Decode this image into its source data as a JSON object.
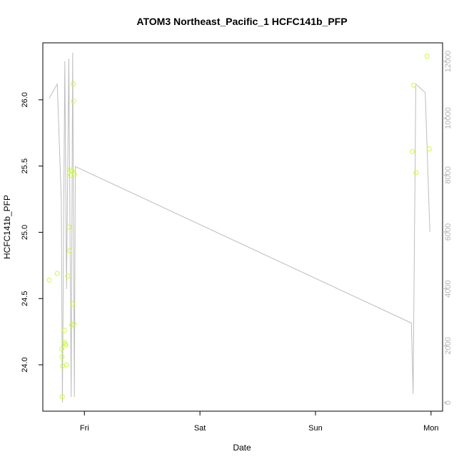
{
  "chart_data": {
    "type": "scatter",
    "title": "ATOM3 Northeast_Pacific_1 HCFC141b_PFP",
    "xlabel": "Date",
    "ylabel": "HCFC141b_PFP",
    "x_ticks": [
      {
        "label": "Fri",
        "day": 1.0
      },
      {
        "label": "Sat",
        "day": 2.0
      },
      {
        "label": "Sun",
        "day": 3.0
      },
      {
        "label": "Mon",
        "day": 4.0
      }
    ],
    "xlim": [
      0.64,
      4.1
    ],
    "ylim": [
      23.65,
      26.43
    ],
    "y_ticks": [
      24.0,
      24.5,
      25.0,
      25.5,
      26.0
    ],
    "y2lim": [
      -300,
      12650
    ],
    "y2_ticks": [
      0,
      2000,
      4000,
      6000,
      8000,
      10000,
      12000
    ],
    "point_color": "#ccff33",
    "line_color": "#bdbdbd",
    "points": [
      {
        "x": 0.695,
        "y": 24.64
      },
      {
        "x": 0.765,
        "y": 24.69
      },
      {
        "x": 0.803,
        "y": 24.12
      },
      {
        "x": 0.806,
        "y": 24.06
      },
      {
        "x": 0.808,
        "y": 23.76
      },
      {
        "x": 0.811,
        "y": 23.99
      },
      {
        "x": 0.822,
        "y": 24.17
      },
      {
        "x": 0.827,
        "y": 24.26
      },
      {
        "x": 0.835,
        "y": 24.16
      },
      {
        "x": 0.838,
        "y": 24.15
      },
      {
        "x": 0.845,
        "y": 24.0
      },
      {
        "x": 0.857,
        "y": 24.67
      },
      {
        "x": 0.87,
        "y": 25.04
      },
      {
        "x": 0.873,
        "y": 24.86
      },
      {
        "x": 0.878,
        "y": 25.47
      },
      {
        "x": 0.882,
        "y": 25.43
      },
      {
        "x": 0.89,
        "y": 24.3
      },
      {
        "x": 0.893,
        "y": 25.46
      },
      {
        "x": 0.898,
        "y": 24.46
      },
      {
        "x": 0.903,
        "y": 26.12
      },
      {
        "x": 0.906,
        "y": 25.99
      },
      {
        "x": 0.909,
        "y": 24.31
      },
      {
        "x": 0.913,
        "y": 25.44
      },
      {
        "x": 3.838,
        "y": 25.61
      },
      {
        "x": 3.85,
        "y": 26.11
      },
      {
        "x": 3.87,
        "y": 25.45
      },
      {
        "x": 3.965,
        "y": 26.33
      },
      {
        "x": 3.985,
        "y": 25.63
      }
    ],
    "line_series": [
      {
        "x": 0.695,
        "y2": 10700
      },
      {
        "x": 0.765,
        "y2": 11200
      },
      {
        "x": 0.8,
        "y2": 7100
      },
      {
        "x": 0.809,
        "y2": 0
      },
      {
        "x": 0.83,
        "y2": 12000
      },
      {
        "x": 0.845,
        "y2": 4000
      },
      {
        "x": 0.865,
        "y2": 12100
      },
      {
        "x": 0.885,
        "y2": 200
      },
      {
        "x": 0.898,
        "y2": 12300
      },
      {
        "x": 0.913,
        "y2": 200
      },
      {
        "x": 0.921,
        "y2": 8300
      },
      {
        "x": 3.83,
        "y2": 2800
      },
      {
        "x": 3.845,
        "y2": 300
      },
      {
        "x": 3.868,
        "y2": 11200
      },
      {
        "x": 3.95,
        "y2": 10900
      },
      {
        "x": 3.99,
        "y2": 6000
      }
    ]
  }
}
